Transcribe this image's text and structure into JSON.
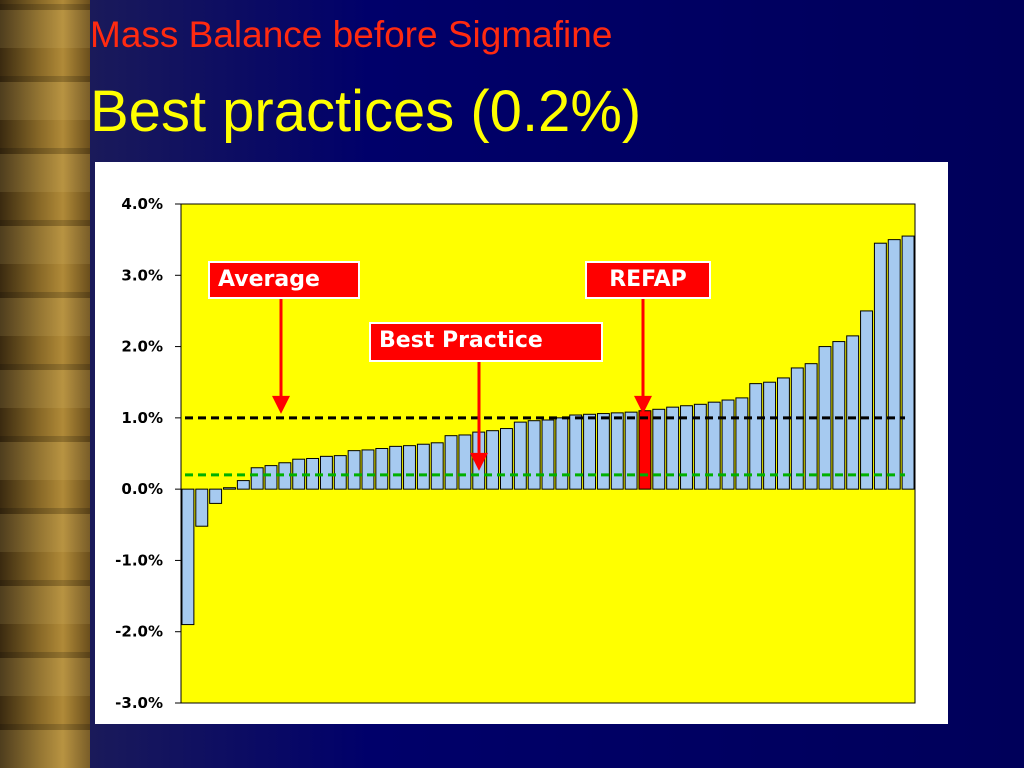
{
  "slide": {
    "subtitle": "Mass Balance before Sigmafine",
    "title": "Best practices (0.2%)"
  },
  "chart_data": {
    "type": "bar",
    "title": "",
    "xlabel": "",
    "ylabel": "",
    "ylim": [
      -3.0,
      4.0
    ],
    "y_ticks": [
      "4.0%",
      "3.0%",
      "2.0%",
      "1.0%",
      "0.0%",
      "-1.0%",
      "-2.0%",
      "-3.0%"
    ],
    "y_tick_values": [
      4,
      3,
      2,
      1,
      0,
      -1,
      -2,
      -3
    ],
    "values": [
      -1.9,
      -0.52,
      -0.2,
      0.02,
      0.12,
      0.3,
      0.33,
      0.37,
      0.42,
      0.43,
      0.46,
      0.47,
      0.54,
      0.55,
      0.57,
      0.6,
      0.61,
      0.63,
      0.65,
      0.75,
      0.76,
      0.8,
      0.82,
      0.85,
      0.94,
      0.96,
      0.97,
      1.0,
      1.04,
      1.05,
      1.06,
      1.07,
      1.08,
      1.1,
      1.12,
      1.15,
      1.17,
      1.19,
      1.22,
      1.25,
      1.28,
      1.48,
      1.5,
      1.56,
      1.7,
      1.76,
      2.0,
      2.07,
      2.15,
      2.5,
      3.45,
      3.5,
      3.55
    ],
    "highlight_index": 33,
    "colors": {
      "bar": "#a6caf0",
      "highlight_bar": "#ff0000",
      "plot_bg": "#ffff00",
      "average_line": "#000000",
      "best_practice_line": "#00b000",
      "callout": "#ff0000",
      "arrow": "#ff0000"
    },
    "reference_lines": [
      {
        "value": 1.0,
        "style": "dashed",
        "color": "#000000"
      },
      {
        "value": 0.2,
        "style": "dashed",
        "color": "#00b000"
      }
    ],
    "annotations": [
      {
        "label": "Average",
        "target_value": 1.0
      },
      {
        "label": "REFAP",
        "target_value": 1.0
      },
      {
        "label": "Best Practice",
        "target_value": 0.2
      }
    ]
  }
}
